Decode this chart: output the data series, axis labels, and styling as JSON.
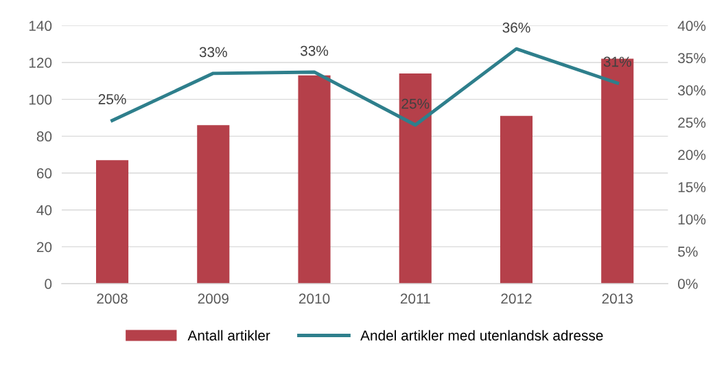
{
  "chart_data": {
    "type": "bar",
    "categories": [
      "2008",
      "2009",
      "2010",
      "2011",
      "2012",
      "2013"
    ],
    "series": [
      {
        "name": "Antall artikler",
        "color": "#b5404a",
        "values": [
          67,
          86,
          113,
          114,
          91,
          122
        ]
      },
      {
        "name": "Andel artikler med utenlandsk adresse",
        "type": "line",
        "axis": "y2",
        "color": "#2e7f8c",
        "values": [
          25.3,
          32.6,
          32.8,
          24.6,
          36.4,
          31.1
        ],
        "value_labels": [
          "25%",
          "33%",
          "33%",
          "25%",
          "36%",
          "31%"
        ]
      }
    ],
    "ylim": [
      0,
      140
    ],
    "yticks": [
      0,
      20,
      40,
      60,
      80,
      100,
      120,
      140
    ],
    "y2lim": [
      0,
      40
    ],
    "y2ticks": [
      {
        "value": 0,
        "label": "0%"
      },
      {
        "value": 5,
        "label": "5%"
      },
      {
        "value": 10,
        "label": "10%"
      },
      {
        "value": 15,
        "label": "15%"
      },
      {
        "value": 20,
        "label": "20%"
      },
      {
        "value": 25,
        "label": "25%"
      },
      {
        "value": 30,
        "label": "30%"
      },
      {
        "value": 35,
        "label": "35%"
      },
      {
        "value": 40,
        "label": "40%"
      }
    ],
    "grid": "y",
    "legend": "bottom",
    "marker": "none",
    "line_style": "solid"
  }
}
